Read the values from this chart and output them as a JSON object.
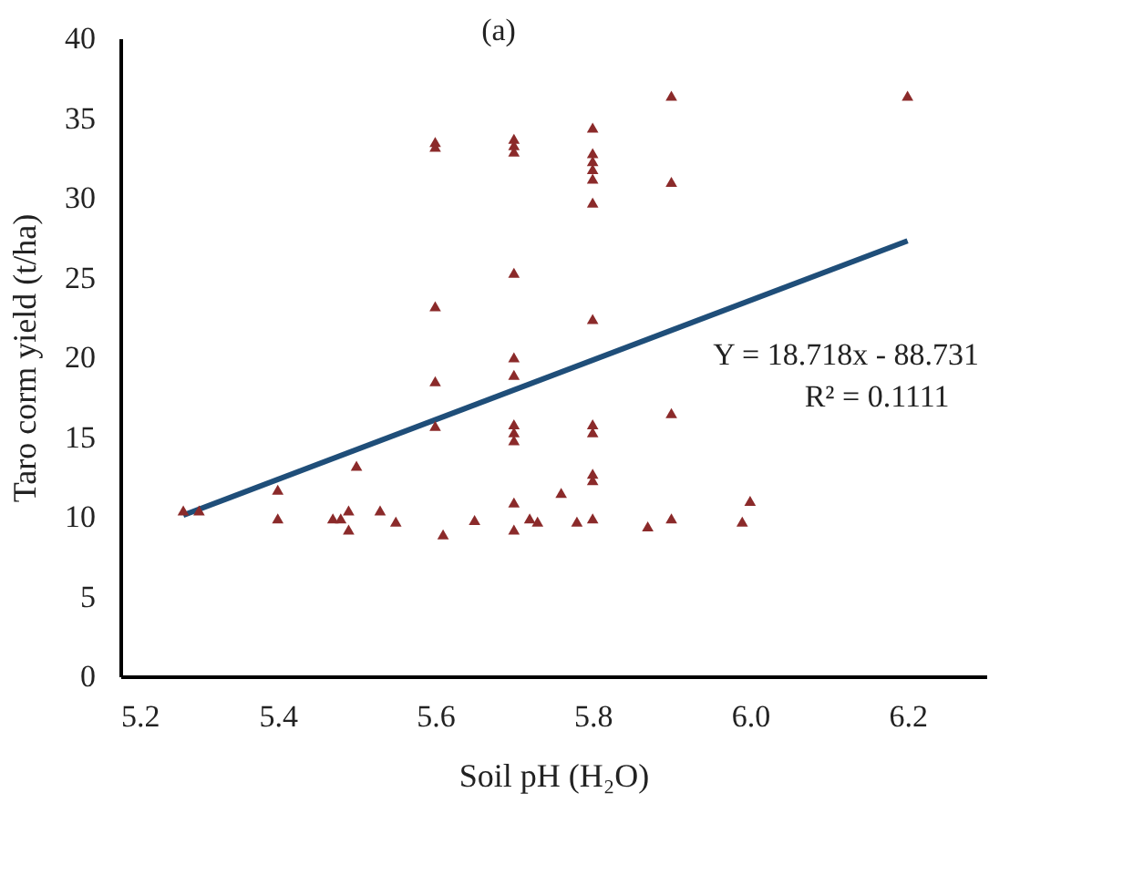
{
  "chart_data": {
    "type": "scatter",
    "title": "(a)",
    "xlabel": "Soil pH (H₂O)",
    "ylabel": "Taro corm yield (t/ha)",
    "xlim": [
      5.2,
      6.3
    ],
    "xticks": [
      {
        "value": 5.2,
        "label": "5.2"
      },
      {
        "value": 5.4,
        "label": "5.4"
      },
      {
        "value": 5.6,
        "label": "5.6"
      },
      {
        "value": 5.8,
        "label": "5.8"
      },
      {
        "value": 6.0,
        "label": "6.0"
      },
      {
        "value": 6.2,
        "label": "6.2"
      }
    ],
    "ylim": [
      0,
      40
    ],
    "yticks": [
      0,
      5,
      10,
      15,
      20,
      25,
      30,
      35,
      40
    ],
    "grid": false,
    "legend": false,
    "series": [
      {
        "marker": "triangle",
        "color": "#8b2a2a",
        "x": [
          5.28,
          5.3,
          5.4,
          5.4,
          5.47,
          5.48,
          5.49,
          5.49,
          5.5,
          5.53,
          5.55,
          5.6,
          5.6,
          5.6,
          5.6,
          5.6,
          5.61,
          5.65,
          5.7,
          5.7,
          5.7,
          5.7,
          5.7,
          5.7,
          5.7,
          5.7,
          5.7,
          5.7,
          5.7,
          5.72,
          5.73,
          5.76,
          5.78,
          5.8,
          5.8,
          5.8,
          5.8,
          5.8,
          5.8,
          5.8,
          5.8,
          5.8,
          5.8,
          5.8,
          5.8,
          5.87,
          5.9,
          5.9,
          5.9,
          5.9,
          5.99,
          6.0,
          6.2
        ],
        "values": [
          10.4,
          10.4,
          11.7,
          9.9,
          9.9,
          9.9,
          10.4,
          9.2,
          13.2,
          10.4,
          9.7,
          33.5,
          33.2,
          23.2,
          18.5,
          15.7,
          8.9,
          9.8,
          33.7,
          33.3,
          32.9,
          25.3,
          20.0,
          18.9,
          15.8,
          15.3,
          14.8,
          10.9,
          9.2,
          9.9,
          9.7,
          11.5,
          9.7,
          9.9,
          34.4,
          32.8,
          32.3,
          31.8,
          31.2,
          29.7,
          22.4,
          15.8,
          15.3,
          12.7,
          12.3,
          9.4,
          36.4,
          31.0,
          16.5,
          9.9,
          9.7,
          11.0,
          36.4
        ]
      },
      {
        "type": "line",
        "line_style": "solid",
        "color": "#1f4e79",
        "x": [
          5.28,
          6.2
        ],
        "values": [
          10.1,
          27.3
        ]
      }
    ],
    "annotations": [
      "Y = 18.718x - 88.731",
      "R² = 0.1111"
    ]
  }
}
